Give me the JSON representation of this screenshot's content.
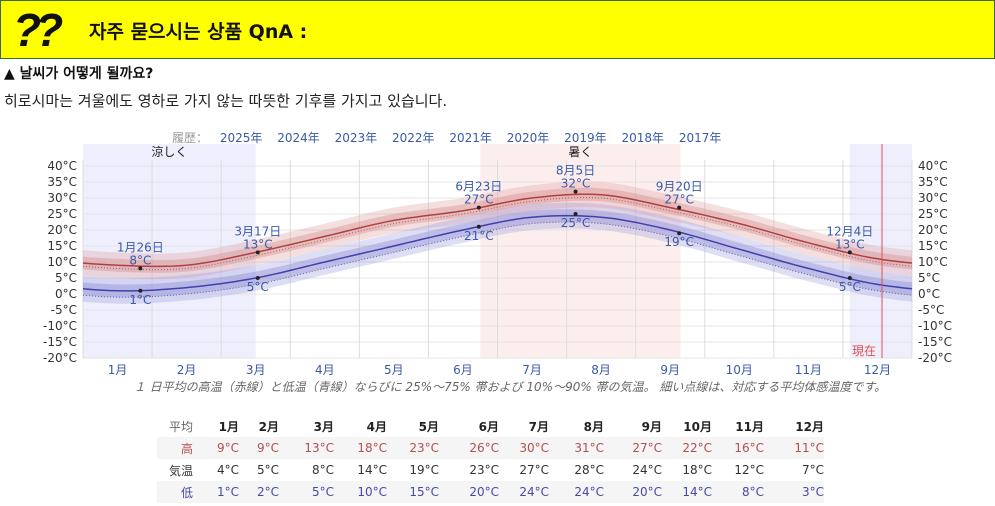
{
  "header": {
    "icon": "double-question-mark-icon",
    "icon_text": "??",
    "title": "자주 묻으시는 상품 QnA :",
    "bg_color": "#ffff00"
  },
  "section": {
    "title": "▲ 날씨가 어떻게 될까요?",
    "description": "히로시마는 겨울에도 영하로 가지 않는 따뜻한 기후를 가지고 있습니다."
  },
  "history": {
    "label": "履歴：",
    "years": [
      "2025年",
      "2024年",
      "2023年",
      "2022年",
      "2021年",
      "2020年",
      "2019年",
      "2018年",
      "2017年"
    ]
  },
  "chart_data": {
    "type": "line",
    "categories": [
      "1月",
      "2月",
      "3月",
      "4月",
      "5月",
      "6月",
      "7月",
      "8月",
      "9月",
      "10月",
      "11月",
      "12月"
    ],
    "series": [
      {
        "name": "高",
        "color": "#b04040",
        "values": [
          9,
          9,
          13,
          18,
          23,
          26,
          30,
          31,
          27,
          22,
          16,
          11
        ]
      },
      {
        "name": "低",
        "color": "#4040a8",
        "values": [
          1,
          2,
          5,
          10,
          15,
          20,
          24,
          24,
          20,
          14,
          8,
          3
        ]
      }
    ],
    "ylim": [
      -20,
      40
    ],
    "yticks": [
      "40°C",
      "35°C",
      "30°C",
      "25°C",
      "20°C",
      "15°C",
      "10°C",
      "5°C",
      "0°C",
      "-5°C",
      "-10°C",
      "-15°C",
      "-20°C"
    ],
    "regions": [
      {
        "label": "涼しく",
        "color": "#eeeefc"
      },
      {
        "label": "暑く",
        "color": "#fdeeee"
      }
    ],
    "annotations": [
      {
        "date": "1月26日",
        "high": "8°C",
        "low": "1°C"
      },
      {
        "date": "3月17日",
        "high": "13°C",
        "low": "5°C"
      },
      {
        "date": "6月23日",
        "high": "27°C",
        "low": "21°C"
      },
      {
        "date": "8月5日",
        "high": "32°C",
        "low": "25°C"
      },
      {
        "date": "9月20日",
        "high": "27°C",
        "low": "19°C"
      },
      {
        "date": "12月4日",
        "high": "13°C",
        "low": "5°C"
      }
    ],
    "now_label": "現在",
    "grid": true
  },
  "caption": "１ 日平均の高温（赤線）と低温（青線）ならびに 25%～75% 帯および 10%～90% 帯の気温。 細い点線は、対応する平均体感温度です。",
  "table": {
    "corner": "平均",
    "months": [
      "1月",
      "2月",
      "3月",
      "4月",
      "5月",
      "6月",
      "7月",
      "8月",
      "9月",
      "10月",
      "11月",
      "12月"
    ],
    "rows": [
      {
        "label": "高",
        "values": [
          "9°C",
          "9°C",
          "13°C",
          "18°C",
          "23°C",
          "26°C",
          "30°C",
          "31°C",
          "27°C",
          "22°C",
          "16°C",
          "11°C"
        ]
      },
      {
        "label": "気温",
        "values": [
          "4°C",
          "5°C",
          "8°C",
          "14°C",
          "19°C",
          "23°C",
          "27°C",
          "28°C",
          "24°C",
          "18°C",
          "12°C",
          "7°C"
        ]
      },
      {
        "label": "低",
        "values": [
          "1°C",
          "2°C",
          "5°C",
          "10°C",
          "15°C",
          "20°C",
          "24°C",
          "24°C",
          "20°C",
          "14°C",
          "8°C",
          "3°C"
        ]
      }
    ]
  }
}
